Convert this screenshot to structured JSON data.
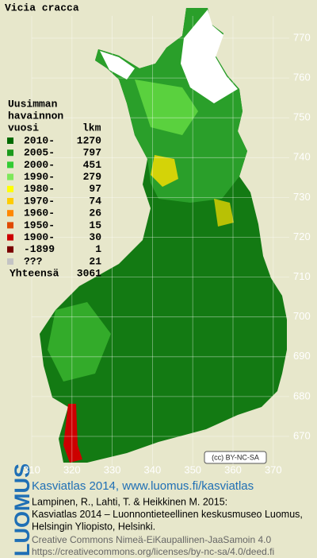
{
  "title": "Vicia cracca",
  "legend": {
    "heading": [
      "Uusimman",
      "havainnon",
      "vuosi"
    ],
    "count_heading": "lkm",
    "rows": [
      {
        "label": "2010-",
        "count": 1270,
        "color": "#006a00"
      },
      {
        "label": "2005-",
        "count": 797,
        "color": "#1b9a1b"
      },
      {
        "label": "2000-",
        "count": 451,
        "color": "#33cc33"
      },
      {
        "label": "1990-",
        "count": 279,
        "color": "#7ee85a"
      },
      {
        "label": "1980-",
        "count": 97,
        "color": "#ffff00"
      },
      {
        "label": "1970-",
        "count": 74,
        "color": "#ffcc00"
      },
      {
        "label": "1960-",
        "count": 26,
        "color": "#ff8800"
      },
      {
        "label": "1950-",
        "count": 15,
        "color": "#e04a00"
      },
      {
        "label": "1900-",
        "count": 30,
        "color": "#cc0000"
      },
      {
        "label": "-1899",
        "count": 1,
        "color": "#7a0000"
      },
      {
        "label": "???",
        "count": 21,
        "color": "#c4c4c4"
      }
    ],
    "total_label": "Yhteensä",
    "total": 3061
  },
  "northing_ticks": [
    770,
    760,
    750,
    740,
    730,
    720,
    710,
    700,
    690,
    680,
    670
  ],
  "easting_ticks": [
    310,
    320,
    330,
    340,
    350,
    360,
    370
  ],
  "badge": "(cc) BY-NC-SA",
  "footer": {
    "logo": "LUOMUS",
    "link": "Kasviatlas 2014, www.luomus.fi/kasviatlas",
    "citation": [
      "Lampinen, R., Lahti, T. & Heikkinen M. 2015:",
      "Kasviatlas 2014 – Luonnontieteellinen keskusmuseo Luomus,",
      "Helsingin Yliopisto, Helsinki."
    ],
    "license": [
      "Creative Commons Nimeä-EiKaupallinen-JaaSamoin 4.0",
      "https://creativecommons.org/licenses/by-nc-sa/4.0/deed.fi"
    ]
  }
}
